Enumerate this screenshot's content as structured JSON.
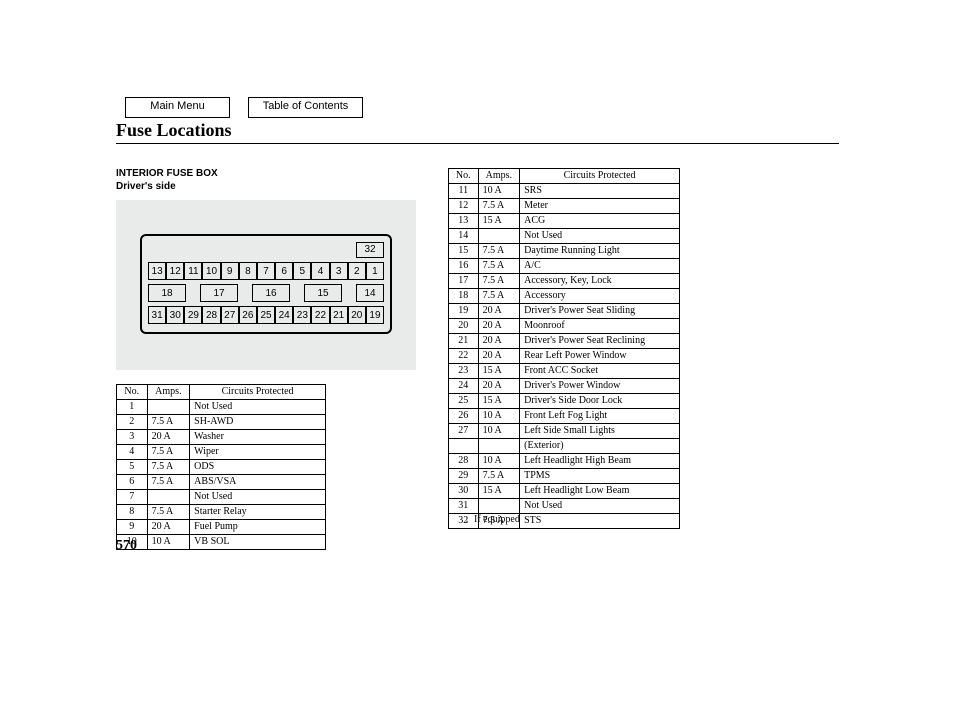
{
  "nav": {
    "main_menu": "Main Menu",
    "toc": "Table of Contents"
  },
  "title": "Fuse Locations",
  "section": {
    "line1": "INTERIOR FUSE BOX",
    "line2": "Driver's side"
  },
  "diagram": {
    "slot32": "32",
    "row_top": [
      "13",
      "12",
      "11",
      "10",
      "9",
      "8",
      "7",
      "6",
      "5",
      "4",
      "3",
      "2",
      "1"
    ],
    "row_mid": [
      "18",
      "17",
      "16",
      "15",
      "14"
    ],
    "row_bottom": [
      "31",
      "30",
      "29",
      "28",
      "27",
      "26",
      "25",
      "24",
      "23",
      "22",
      "21",
      "20",
      "19"
    ]
  },
  "table_headers": {
    "no": "No.",
    "amps": "Amps.",
    "circ": "Circuits Protected"
  },
  "left_rows": [
    {
      "no": "1",
      "amps": "",
      "circ": "Not Used"
    },
    {
      "no": "2",
      "amps": "7.5 A",
      "circ": "SH-AWD"
    },
    {
      "no": "3",
      "amps": "20 A",
      "circ": "Washer"
    },
    {
      "no": "4",
      "amps": "7.5 A",
      "circ": "Wiper"
    },
    {
      "no": "5",
      "amps": "7.5 A",
      "circ": "ODS"
    },
    {
      "no": "6",
      "amps": "7.5 A",
      "circ": "ABS/VSA"
    },
    {
      "no": "7",
      "amps": "",
      "circ": "Not Used"
    },
    {
      "no": "8",
      "amps": "7.5 A",
      "circ": "Starter Relay"
    },
    {
      "no": "9",
      "amps": "20 A",
      "circ": "Fuel Pump"
    },
    {
      "no": "10",
      "amps": "10 A",
      "circ": "VB SOL"
    }
  ],
  "right_rows": [
    {
      "no": "11",
      "amps": "10 A",
      "circ": "SRS"
    },
    {
      "no": "12",
      "amps": "7.5 A",
      "circ": "Meter"
    },
    {
      "no": "13",
      "amps": "15 A",
      "circ": "ACG"
    },
    {
      "no": "14",
      "amps": "",
      "circ": "Not Used"
    },
    {
      "no": "15",
      "amps": "7.5 A",
      "circ": "Daytime Running Light"
    },
    {
      "no": "16",
      "amps": "7.5 A",
      "circ": "A/C"
    },
    {
      "no": "17",
      "amps": "7.5 A",
      "circ": "Accessory, Key, Lock"
    },
    {
      "no": "18",
      "amps": "7.5 A",
      "circ": "Accessory"
    },
    {
      "no": "19",
      "amps": "20 A",
      "circ": "Driver's Power Seat Sliding"
    },
    {
      "no": "20",
      "amps": "20 A",
      "circ": "Moonroof"
    },
    {
      "no": "21",
      "amps": "20 A",
      "circ": "Driver's Power Seat Reclining"
    },
    {
      "no": "22",
      "amps": "20 A",
      "circ": "Rear Left Power Window"
    },
    {
      "no": "23",
      "amps": "15 A",
      "circ": "Front ACC Socket"
    },
    {
      "no": "24",
      "amps": "20 A",
      "circ": "Driver's Power Window"
    },
    {
      "no": "25",
      "amps": "15 A",
      "circ": "Driver's Side Door Lock"
    },
    {
      "no": "26",
      "amps": "10 A",
      "circ": "Front Left Fog Light"
    },
    {
      "no": "27",
      "amps": "10 A",
      "circ": "Left Side Small Lights"
    },
    {
      "no": "",
      "amps": "",
      "circ": "(Exterior)"
    },
    {
      "no": "28",
      "amps": "10 A",
      "circ": "Left Headlight High Beam"
    },
    {
      "no": "29",
      "amps": "7.5 A",
      "circ": "TPMS"
    },
    {
      "no": "30",
      "amps": "15 A",
      "circ": "Left Headlight Low Beam"
    },
    {
      "no": "31",
      "amps": "",
      "circ": "Not Used"
    },
    {
      "no": "32",
      "amps": "7.5 A",
      "circ": "STS"
    }
  ],
  "footnote": "If equipped",
  "page_number": "570",
  "colors": {
    "grey_box": "#e9eaea"
  }
}
